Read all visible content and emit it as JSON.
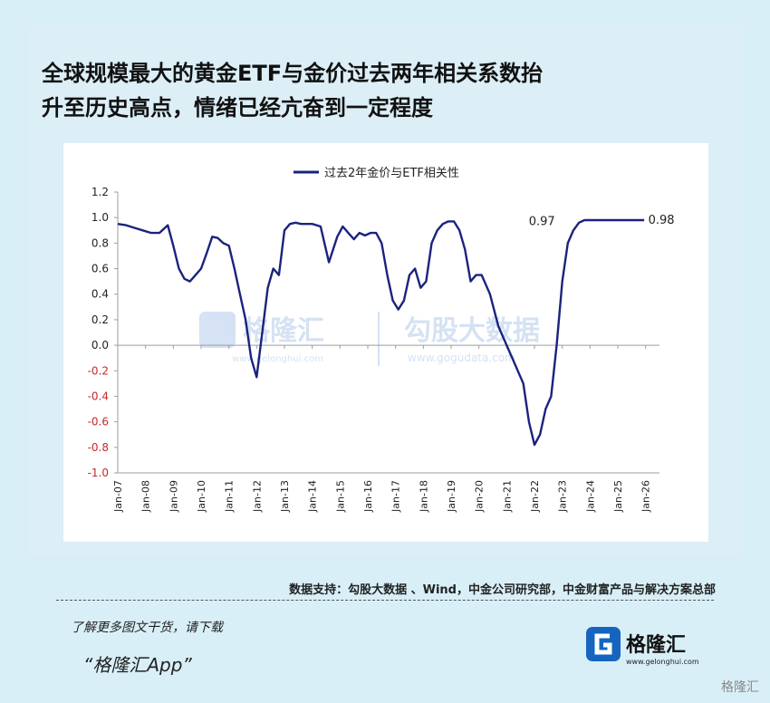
{
  "header": {
    "title_line1": "全球规模最大的黄金ETF与金价过去两年相关系数抬",
    "title_line2": "升至历史高点，情绪已经亢奋到一定程度"
  },
  "watermark": {
    "brand1": "格隆汇",
    "url1": "www.gelonghui.com",
    "brand2": "勾股大数据",
    "url2": "www.gogudata.com"
  },
  "footer": {
    "source": "数据支持：勾股大数据 、Wind，中金公司研究部，中金财富产品与解决方案总部",
    "cta": "了解更多图文干货，请下载",
    "app": "“格隆汇App”",
    "logo_text": "格隆汇",
    "logo_url": "www.gelonghui.com",
    "corner": "格隆汇"
  },
  "colors": {
    "line": "#1a237e",
    "axis": "#9e9e9e",
    "negative_tick": "#c62828"
  },
  "chart_data": {
    "type": "line",
    "legend": "过去2年金价与ETF相关性",
    "legend_position": "top-center",
    "ylim": [
      -1.0,
      1.2
    ],
    "yticks": [
      1.2,
      1.0,
      0.8,
      0.6,
      0.4,
      0.2,
      0.0,
      -0.2,
      -0.4,
      -0.6,
      -0.8,
      -1.0
    ],
    "ytick_labels": [
      "1.2",
      "1.0",
      "0.8",
      "0.6",
      "0.4",
      "0.2",
      "0.0",
      "-0.2",
      "-0.4",
      "-0.6",
      "-0.8",
      "-1.0"
    ],
    "xlim": [
      2007.0,
      2026.5
    ],
    "xticks": [
      2007,
      2008,
      2009,
      2010,
      2011,
      2012,
      2013,
      2014,
      2015,
      2016,
      2017,
      2018,
      2019,
      2020,
      2021,
      2022,
      2023,
      2024,
      2025,
      2026
    ],
    "xtick_labels": [
      "Jan-07",
      "Jan-08",
      "Jan-09",
      "Jan-10",
      "Jan-11",
      "Jan-12",
      "Jan-13",
      "Jan-14",
      "Jan-15",
      "Jan-16",
      "Jan-17",
      "Jan-18",
      "Jan-19",
      "Jan-20",
      "Jan-21",
      "Jan-22",
      "Jan-23",
      "Jan-24",
      "Jan-25",
      "Jan-26"
    ],
    "grid": false,
    "annotations": [
      {
        "x": 2021.6,
        "y": 0.97,
        "text": "0.97"
      },
      {
        "x": 2025.9,
        "y": 0.98,
        "text": "0.98"
      }
    ],
    "series": [
      {
        "name": "过去2年金价与ETF相关性",
        "x": [
          2007.0,
          2007.3,
          2007.6,
          2007.9,
          2008.2,
          2008.5,
          2008.8,
          2009.0,
          2009.2,
          2009.4,
          2009.6,
          2009.8,
          2010.0,
          2010.2,
          2010.4,
          2010.6,
          2010.8,
          2011.0,
          2011.2,
          2011.4,
          2011.6,
          2011.8,
          2012.0,
          2012.2,
          2012.4,
          2012.6,
          2012.8,
          2013.0,
          2013.2,
          2013.4,
          2013.6,
          2013.8,
          2014.0,
          2014.3,
          2014.6,
          2014.9,
          2015.1,
          2015.3,
          2015.5,
          2015.7,
          2015.9,
          2016.1,
          2016.3,
          2016.5,
          2016.7,
          2016.9,
          2017.1,
          2017.3,
          2017.5,
          2017.7,
          2017.9,
          2018.1,
          2018.3,
          2018.5,
          2018.7,
          2018.9,
          2019.1,
          2019.3,
          2019.5,
          2019.7,
          2019.9,
          2020.1,
          2020.4,
          2020.7,
          2021.0,
          2021.3,
          2021.6,
          2021.8,
          2022.0,
          2022.2,
          2022.4,
          2022.6,
          2022.8,
          2023.0,
          2023.2,
          2023.4,
          2023.6,
          2023.8,
          2024.0,
          2024.2,
          2024.4,
          2024.6,
          2024.8,
          2025.0,
          2025.2,
          2025.4,
          2025.6,
          2025.8,
          2025.95
        ],
        "values": [
          0.95,
          0.94,
          0.92,
          0.9,
          0.88,
          0.88,
          0.94,
          0.78,
          0.6,
          0.52,
          0.5,
          0.55,
          0.6,
          0.72,
          0.85,
          0.84,
          0.8,
          0.78,
          0.6,
          0.4,
          0.2,
          -0.1,
          -0.25,
          0.1,
          0.45,
          0.6,
          0.55,
          0.9,
          0.95,
          0.96,
          0.95,
          0.95,
          0.95,
          0.93,
          0.65,
          0.85,
          0.93,
          0.88,
          0.83,
          0.88,
          0.86,
          0.88,
          0.88,
          0.8,
          0.55,
          0.35,
          0.28,
          0.35,
          0.55,
          0.6,
          0.45,
          0.5,
          0.8,
          0.9,
          0.95,
          0.97,
          0.97,
          0.9,
          0.75,
          0.5,
          0.55,
          0.55,
          0.4,
          0.15,
          0.0,
          -0.15,
          -0.3,
          -0.6,
          -0.78,
          -0.7,
          -0.5,
          -0.4,
          0.0,
          0.5,
          0.8,
          0.9,
          0.96,
          0.98,
          0.98,
          0.98,
          0.98,
          0.98,
          0.98,
          0.98,
          0.98,
          0.98,
          0.98,
          0.98,
          0.98
        ]
      }
    ]
  }
}
